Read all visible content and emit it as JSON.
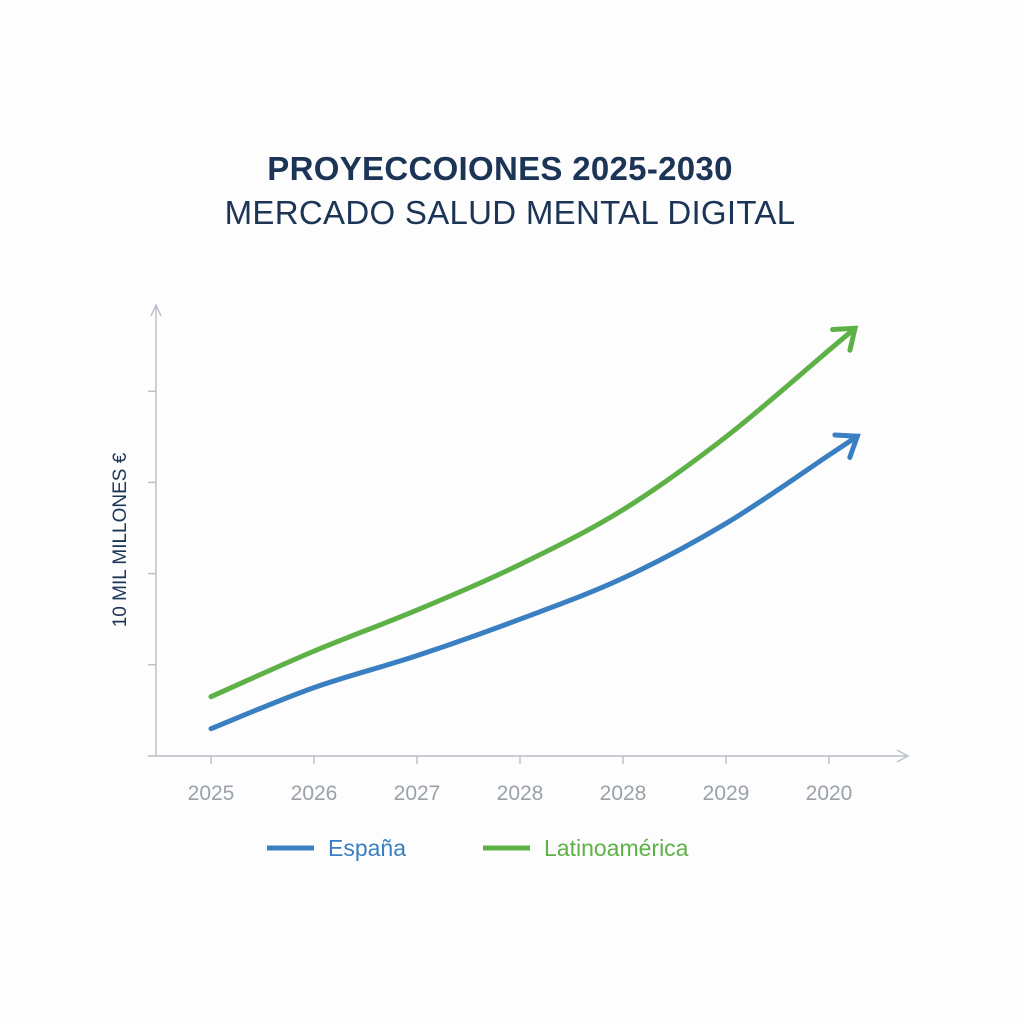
{
  "header": {
    "title": "PROYECCOIONES 2025-2030",
    "subtitle": "MERCADO SALUD MENTAL DIGITAL"
  },
  "chart_data": {
    "type": "line",
    "title": "PROYECCOIONES 2025-2030",
    "subtitle": "MERCADO SALUD MENTAL DIGITAL",
    "xlabel": "",
    "ylabel": "10 MIL MILLONES €",
    "categories": [
      "2025",
      "2026",
      "2027",
      "2028",
      "2028",
      "2029",
      "2020"
    ],
    "ylim": [
      0,
      5
    ],
    "y_ticks": [
      1,
      2,
      3,
      4
    ],
    "grid": false,
    "legend_position": "bottom",
    "series": [
      {
        "name": "España",
        "color": "#3a7fc1",
        "values": [
          0.3,
          0.75,
          1.1,
          1.5,
          1.95,
          2.55,
          3.3
        ],
        "end_arrow": true
      },
      {
        "name": "Latinoamérica",
        "color": "#5db146",
        "values": [
          0.65,
          1.15,
          1.6,
          2.1,
          2.7,
          3.5,
          4.45
        ],
        "end_arrow": true
      }
    ]
  }
}
